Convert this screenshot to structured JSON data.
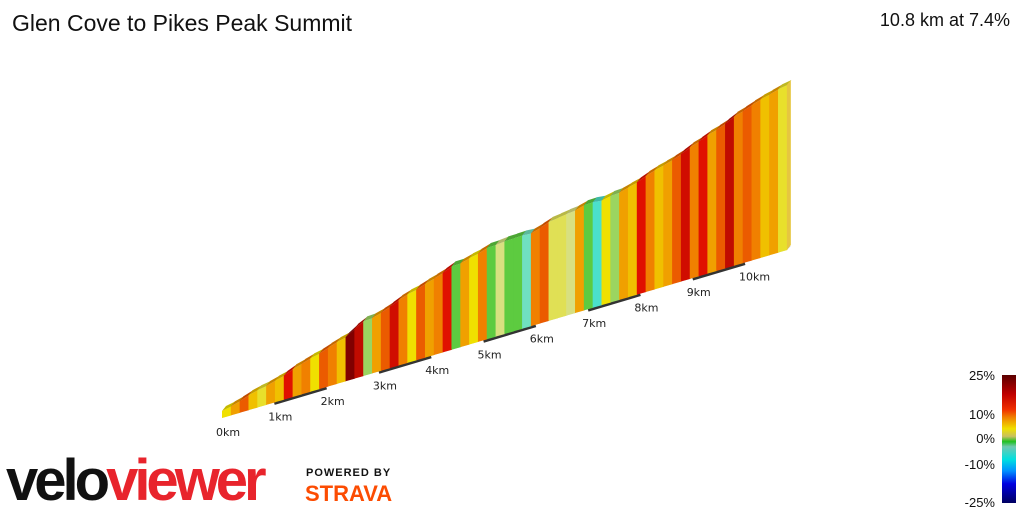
{
  "header": {
    "title": "Glen Cove to Pikes Peak Summit",
    "summary": "10.8 km at 7.4%"
  },
  "chart_data": {
    "type": "area",
    "title": "Glen Cove to Pikes Peak Summit",
    "distance_km": 10.8,
    "average_gradient_pct": 7.4,
    "x_ticks": [
      "0km",
      "1km",
      "2km",
      "3km",
      "4km",
      "5km",
      "6km",
      "7km",
      "8km",
      "9km",
      "10km"
    ],
    "segment_gradients_pct": [
      6,
      8,
      10,
      7,
      5,
      8,
      7,
      12,
      8,
      9,
      6,
      10,
      9,
      7,
      18,
      14,
      2,
      8,
      10,
      13,
      9,
      6,
      10,
      8,
      9,
      12,
      1,
      8,
      6,
      9,
      1,
      3,
      1,
      1,
      -2,
      9,
      10,
      4,
      4,
      3,
      8,
      1,
      -3,
      6,
      2,
      8,
      7,
      12,
      9,
      7,
      8,
      10,
      13,
      9,
      12,
      8,
      10,
      14,
      9,
      10,
      9,
      7,
      8,
      5
    ],
    "color_scale": [
      {
        "pct": -25,
        "color": "#000060"
      },
      {
        "pct": -15,
        "color": "#0000e0"
      },
      {
        "pct": -10,
        "color": "#0090ff"
      },
      {
        "pct": -5,
        "color": "#00e0e0"
      },
      {
        "pct": -2,
        "color": "#70e0c0"
      },
      {
        "pct": 0,
        "color": "#20c020"
      },
      {
        "pct": 3,
        "color": "#d8e080"
      },
      {
        "pct": 6,
        "color": "#f0e000"
      },
      {
        "pct": 9,
        "color": "#f08000"
      },
      {
        "pct": 12,
        "color": "#e01000"
      },
      {
        "pct": 18,
        "color": "#800000"
      },
      {
        "pct": 25,
        "color": "#500000"
      }
    ],
    "legend": {
      "labels": [
        "25%",
        "10%",
        "0%",
        "-10%",
        "-25%"
      ],
      "placement": "bottom-right"
    }
  },
  "branding": {
    "logo_part1": "velo",
    "logo_part2": "viewer",
    "powered_by": "POWERED BY",
    "strava": "STRAVA"
  }
}
